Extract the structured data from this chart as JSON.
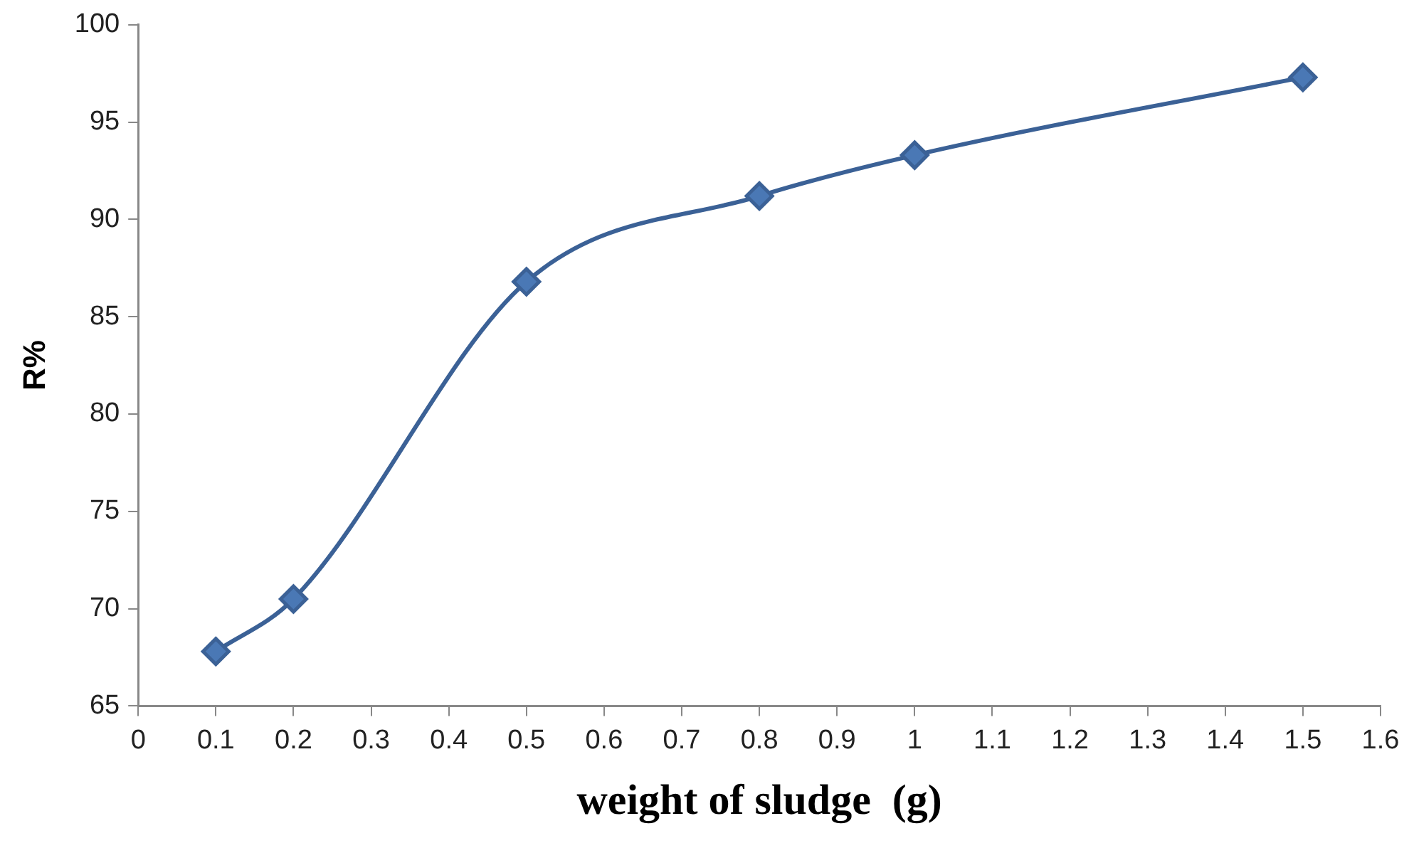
{
  "chart_data": {
    "type": "line",
    "xlabel": "weight of sludge  (g)",
    "ylabel": "R%",
    "x": [
      0.1,
      0.2,
      0.5,
      0.8,
      1,
      1.5
    ],
    "series": [
      {
        "color": "#3b6196",
        "values": [
          67.8,
          70.5,
          86.8,
          91.2,
          93.3,
          97.3
        ]
      }
    ],
    "xlim": [
      0,
      1.6
    ],
    "xticks": [
      0,
      0.1,
      0.2,
      0.3,
      0.4,
      0.5,
      0.6,
      0.7,
      0.8,
      0.9,
      1,
      1.1,
      1.2,
      1.3,
      1.4,
      1.5,
      1.6
    ],
    "ylim": [
      65,
      100
    ],
    "yticks": [
      65,
      70,
      75,
      80,
      85,
      90,
      95,
      100
    ],
    "grid": false,
    "legend": false,
    "marker": "diamond",
    "line_style": "solid"
  }
}
